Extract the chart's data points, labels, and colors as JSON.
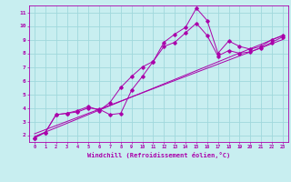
{
  "xlabel": "Windchill (Refroidissement éolien,°C)",
  "bg_color": "#c8eef0",
  "grid_color": "#a0d8dc",
  "line_color": "#aa00aa",
  "xlim": [
    -0.5,
    23.5
  ],
  "ylim": [
    1.5,
    11.5
  ],
  "xticks": [
    0,
    1,
    2,
    3,
    4,
    5,
    6,
    7,
    8,
    9,
    10,
    11,
    12,
    13,
    14,
    15,
    16,
    17,
    18,
    19,
    20,
    21,
    22,
    23
  ],
  "yticks": [
    2,
    3,
    4,
    5,
    6,
    7,
    8,
    9,
    10,
    11
  ],
  "series1_x": [
    0,
    1,
    2,
    3,
    4,
    5,
    6,
    7,
    8,
    9,
    10,
    11,
    12,
    13,
    14,
    15,
    16,
    17,
    18,
    19,
    20,
    21,
    22,
    23
  ],
  "series1_y": [
    1.8,
    2.2,
    3.5,
    3.6,
    3.7,
    4.0,
    3.9,
    3.5,
    3.6,
    5.3,
    6.3,
    7.4,
    8.8,
    9.4,
    9.9,
    11.3,
    10.4,
    8.0,
    8.9,
    8.5,
    8.3,
    8.5,
    9.0,
    9.3
  ],
  "series2_x": [
    0,
    1,
    2,
    3,
    4,
    5,
    6,
    7,
    8,
    9,
    10,
    11,
    12,
    13,
    14,
    15,
    16,
    17,
    18,
    19,
    20,
    21,
    22,
    23
  ],
  "series2_y": [
    1.8,
    2.2,
    3.5,
    3.6,
    3.8,
    4.1,
    3.8,
    4.4,
    5.5,
    6.3,
    7.0,
    7.4,
    8.5,
    8.8,
    9.5,
    10.2,
    9.3,
    7.8,
    8.2,
    8.0,
    8.1,
    8.4,
    8.8,
    9.2
  ],
  "trend1_x": [
    0,
    23
  ],
  "trend1_y": [
    1.9,
    9.3
  ],
  "trend2_x": [
    0,
    23
  ],
  "trend2_y": [
    2.1,
    9.0
  ]
}
